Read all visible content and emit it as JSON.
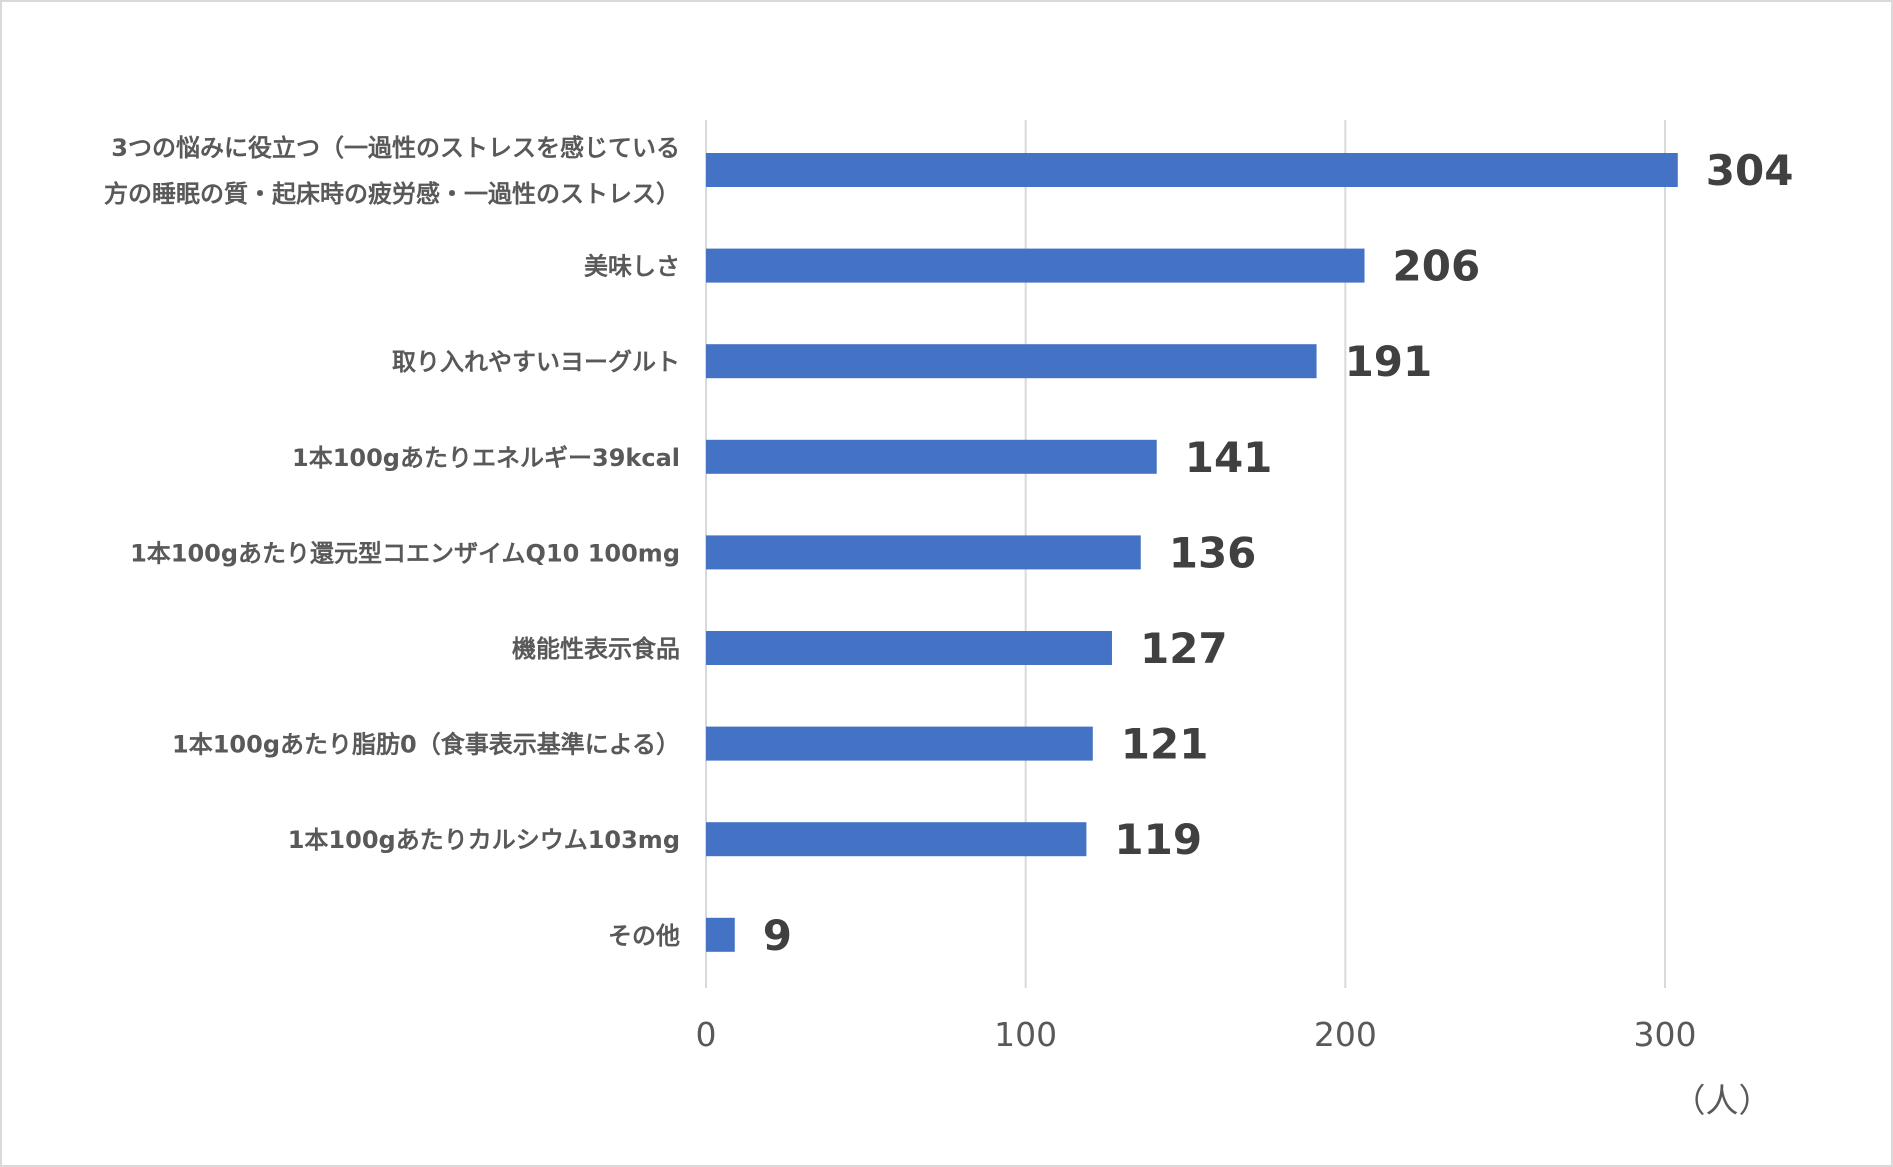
{
  "chart_data": {
    "type": "bar",
    "orientation": "horizontal",
    "categories": [
      [
        "3つの悩みに役立つ（一過性のストレスを感じている",
        "方の睡眠の質・起床時の疲労感・一過性のストレス）"
      ],
      [
        "美味しさ"
      ],
      [
        "取り入れやすいヨーグルト"
      ],
      [
        "1本100gあたりエネルギー39kcal"
      ],
      [
        "1本100gあたり還元型コエンザイムQ10 100mg"
      ],
      [
        "機能性表示食品"
      ],
      [
        "1本100gあたり脂肪0（食事表示基準による）"
      ],
      [
        "1本100gあたりカルシウム103mg"
      ],
      [
        "その他"
      ]
    ],
    "values": [
      304,
      206,
      191,
      141,
      136,
      127,
      121,
      119,
      9
    ],
    "xlim": [
      0,
      300
    ],
    "x_ticks": [
      0,
      100,
      200,
      300
    ],
    "x_tick_labels": [
      "0",
      "100",
      "200",
      "300"
    ],
    "unit": "（人）",
    "title": "",
    "xlabel": "",
    "ylabel": "",
    "grid": "vertical",
    "legend": "none",
    "data_labels": true,
    "bar_color": "#4472c4",
    "grid_color": "#d9d9d9"
  }
}
